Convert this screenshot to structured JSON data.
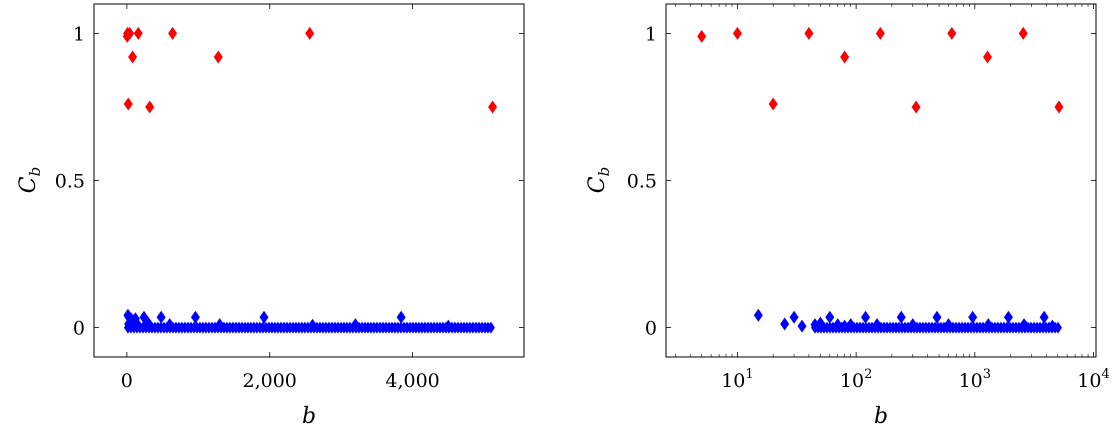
{
  "chart_data": [
    {
      "type": "scatter",
      "xlabel": "b",
      "ylabel": {
        "main": "C",
        "sub": "b"
      },
      "xscale": "linear",
      "xlim": [
        -460,
        5560
      ],
      "ylim": [
        -0.1,
        1.1
      ],
      "xticks": [
        0,
        2000,
        4000
      ],
      "xtick_labels": [
        "0",
        "2,000",
        "4,000"
      ],
      "yticks": [
        0,
        0.5,
        1
      ],
      "ytick_labels": [
        "0",
        "0.5",
        "1"
      ],
      "grid": false,
      "legend": "none",
      "series": [
        {
          "color": "#ff0000",
          "marker": "diamond",
          "points": [
            [
              5,
              0.99
            ],
            [
              10,
              1.0
            ],
            [
              20,
              0.76
            ],
            [
              40,
              1.0
            ],
            [
              80,
              0.92
            ],
            [
              160,
              1.0
            ],
            [
              320,
              0.75
            ],
            [
              640,
              1.0
            ],
            [
              1280,
              0.92
            ],
            [
              2560,
              1.0
            ],
            [
              5120,
              0.75
            ]
          ]
        },
        {
          "color": "#0000ff",
          "marker": "diamond",
          "band": {
            "x_from": 15,
            "x_to": 5120,
            "y": 0.0
          },
          "points": [
            [
              15,
              0.042
            ],
            [
              25,
              0.012
            ],
            [
              30,
              0.035
            ],
            [
              40,
              0.01
            ],
            [
              60,
              0.03
            ],
            [
              90,
              0.022
            ],
            [
              120,
              0.03
            ],
            [
              150,
              0.01
            ],
            [
              240,
              0.035
            ],
            [
              300,
              0.015
            ],
            [
              480,
              0.035
            ],
            [
              600,
              0.01
            ],
            [
              960,
              0.035
            ],
            [
              1300,
              0.01
            ],
            [
              1920,
              0.035
            ],
            [
              2600,
              0.008
            ],
            [
              3200,
              0.01
            ],
            [
              3840,
              0.035
            ],
            [
              4500,
              0.005
            ]
          ]
        }
      ]
    },
    {
      "type": "scatter",
      "xlabel": "b",
      "ylabel": {
        "main": "C",
        "sub": "b"
      },
      "xscale": "log",
      "xlim": [
        2.5,
        10500
      ],
      "ylim": [
        -0.1,
        1.1
      ],
      "xticks": [
        10,
        100,
        1000,
        10000
      ],
      "xtick_labels": [
        {
          "base": "10",
          "exp": "1"
        },
        {
          "base": "10",
          "exp": "2"
        },
        {
          "base": "10",
          "exp": "3"
        },
        {
          "base": "10",
          "exp": "4"
        }
      ],
      "yticks": [
        0,
        0.5,
        1
      ],
      "ytick_labels": [
        "0",
        "0.5",
        "1"
      ],
      "grid": false,
      "legend": "none",
      "series": [
        {
          "color": "#ff0000",
          "marker": "diamond",
          "points": [
            [
              5,
              0.99
            ],
            [
              10,
              1.0
            ],
            [
              20,
              0.76
            ],
            [
              40,
              1.0
            ],
            [
              80,
              0.92
            ],
            [
              160,
              1.0
            ],
            [
              320,
              0.75
            ],
            [
              640,
              1.0
            ],
            [
              1280,
              0.92
            ],
            [
              2560,
              1.0
            ],
            [
              5120,
              0.75
            ]
          ]
        },
        {
          "color": "#0000ff",
          "marker": "diamond",
          "band": {
            "x_from": 45,
            "x_to": 5120,
            "y": 0.0
          },
          "points": [
            [
              15,
              0.042
            ],
            [
              25,
              0.012
            ],
            [
              30,
              0.035
            ],
            [
              35,
              0.005
            ],
            [
              45,
              0.01
            ],
            [
              50,
              0.015
            ],
            [
              60,
              0.035
            ],
            [
              70,
              0.01
            ],
            [
              80,
              0.005
            ],
            [
              90,
              0.01
            ],
            [
              120,
              0.035
            ],
            [
              150,
              0.01
            ],
            [
              240,
              0.035
            ],
            [
              300,
              0.01
            ],
            [
              480,
              0.035
            ],
            [
              600,
              0.01
            ],
            [
              960,
              0.035
            ],
            [
              1300,
              0.01
            ],
            [
              1920,
              0.035
            ],
            [
              2600,
              0.01
            ],
            [
              3840,
              0.035
            ],
            [
              4500,
              0.005
            ]
          ]
        }
      ]
    }
  ]
}
